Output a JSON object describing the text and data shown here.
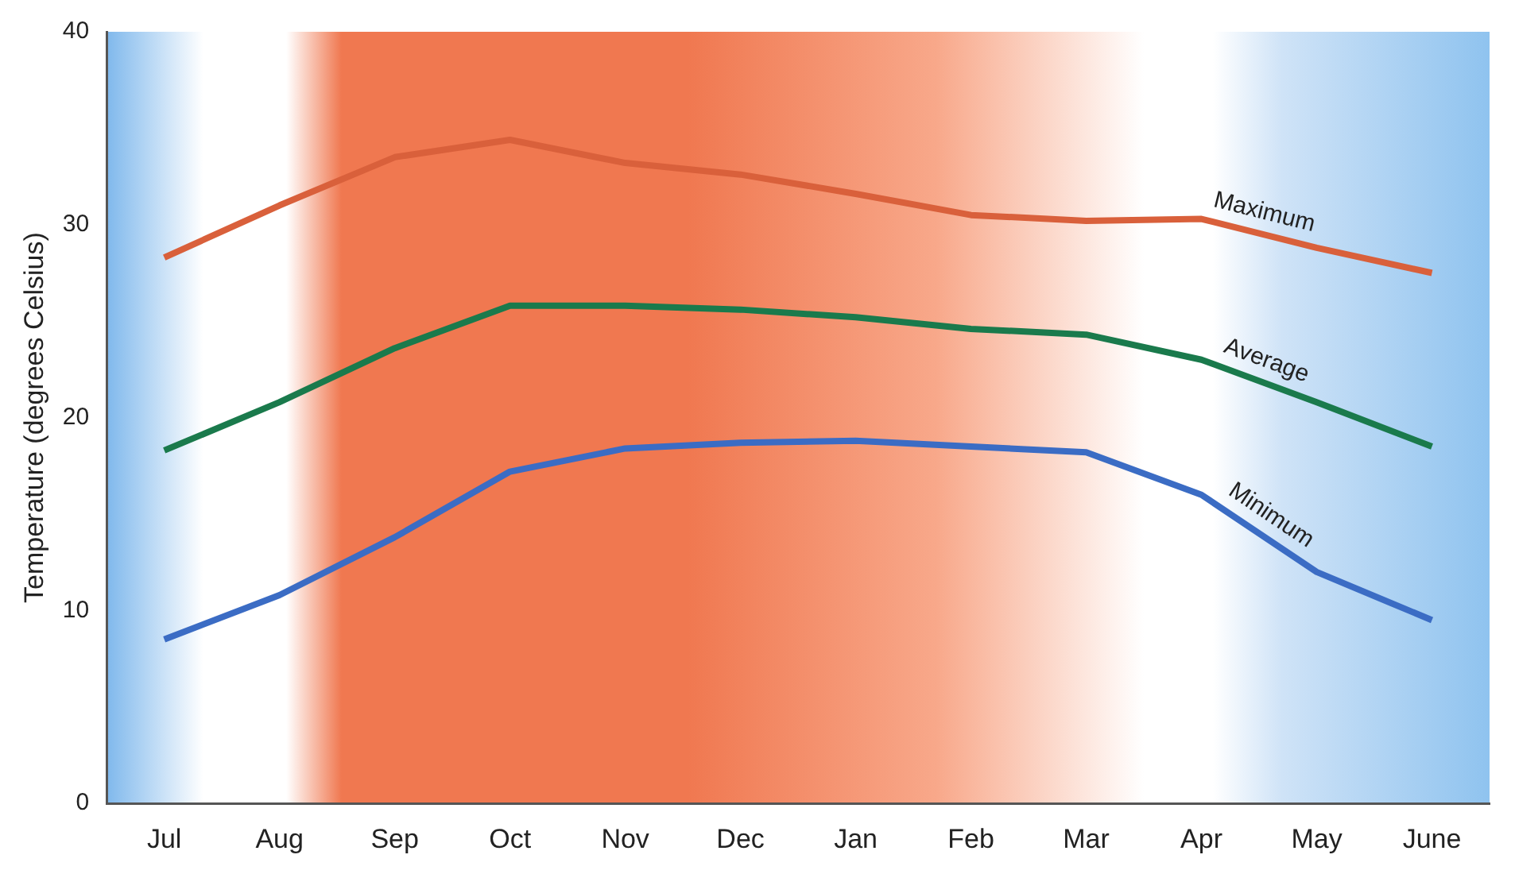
{
  "chart_data": {
    "type": "line",
    "ylabel": "Temperature (degrees Celsius)",
    "categories": [
      "Jul",
      "Aug",
      "Sep",
      "Oct",
      "Nov",
      "Dec",
      "Jan",
      "Feb",
      "Mar",
      "Apr",
      "May",
      "June"
    ],
    "series": [
      {
        "name": "Maximum",
        "color": "#d9603b",
        "values": [
          28.3,
          31,
          33.5,
          34.4,
          33.2,
          32.6,
          31.6,
          30.5,
          30.2,
          30.3,
          28.8,
          27.5
        ]
      },
      {
        "name": "Average",
        "color": "#1a7a4c",
        "values": [
          18.3,
          20.8,
          23.6,
          25.8,
          25.8,
          25.6,
          25.2,
          24.6,
          24.3,
          23,
          20.8,
          18.5
        ]
      },
      {
        "name": "Minimum",
        "color": "#3b6cc4",
        "values": [
          8.5,
          10.8,
          13.8,
          17.2,
          18.4,
          18.7,
          18.8,
          18.5,
          18.2,
          16,
          12,
          9.5
        ]
      }
    ],
    "ylim": [
      0,
      40
    ],
    "yticks": [
      0,
      10,
      20,
      30,
      40
    ],
    "grid": false,
    "legend": false,
    "marker": "none",
    "line_style": "solid"
  }
}
